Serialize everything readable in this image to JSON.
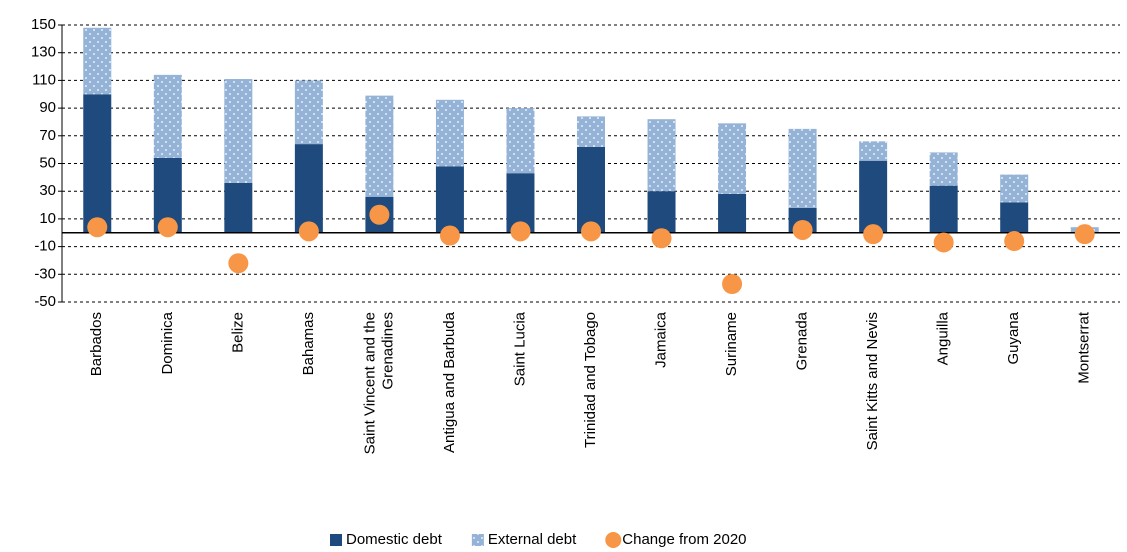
{
  "chart_data": {
    "type": "bar",
    "stacked": true,
    "categories": [
      "Barbados",
      "Dominica",
      "Belize",
      "Bahamas",
      "Saint Vincent and the Grenadines",
      "Antigua and Barbuda",
      "Saint Lucia",
      "Trinidad and Tobago",
      "Jamaica",
      "Suriname",
      "Grenada",
      "Saint Kitts and Nevis",
      "Anguilla",
      "Guyana",
      "Montserrat"
    ],
    "series": [
      {
        "name": "Domestic debt",
        "type": "bar",
        "color": "#1f4a7e",
        "values": [
          100,
          54,
          36,
          64,
          26,
          48,
          43,
          62,
          30,
          28,
          18,
          52,
          34,
          22,
          0
        ]
      },
      {
        "name": "External debt",
        "type": "bar",
        "color": "#95b3d7",
        "values": [
          48,
          60,
          75,
          46,
          73,
          48,
          47,
          22,
          52,
          51,
          57,
          14,
          24,
          20,
          4
        ]
      },
      {
        "name": "Change from 2020",
        "type": "scatter",
        "color": "#f79646",
        "values": [
          4,
          4,
          -22,
          1,
          13,
          -2,
          1,
          1,
          -4,
          -37,
          2,
          -1,
          -7,
          -6,
          -1
        ]
      }
    ],
    "ylim": [
      -50,
      150
    ],
    "yticks": [
      150,
      130,
      110,
      90,
      70,
      50,
      30,
      10,
      -10,
      -30,
      -50
    ],
    "grid": true,
    "legend": "bottom"
  }
}
